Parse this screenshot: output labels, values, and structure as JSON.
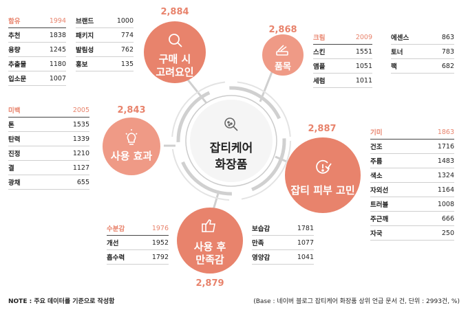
{
  "center": {
    "title": "잡티케어\n화장품"
  },
  "bubbles": {
    "purchase": {
      "label": "구매 시\n고려요인",
      "count": "2,884",
      "icon": "search-icon"
    },
    "item": {
      "label": "품목",
      "count": "2,868",
      "icon": "cosmetics-icon"
    },
    "concern": {
      "label": "잡티 피부 고민",
      "count": "2,887",
      "icon": "alert-check-icon"
    },
    "effect": {
      "label": "사용 효과",
      "count": "2,843",
      "icon": "lightbulb-icon"
    },
    "satisfaction": {
      "label": "사용 후\n만족감",
      "count": "2,879",
      "icon": "thumbs-up-icon"
    }
  },
  "tables": {
    "purchase_left": [
      {
        "k": "함유",
        "v": "1994"
      },
      {
        "k": "추천",
        "v": "1838"
      },
      {
        "k": "용량",
        "v": "1245"
      },
      {
        "k": "추출물",
        "v": "1180"
      },
      {
        "k": "입소문",
        "v": "1007"
      }
    ],
    "purchase_right": [
      {
        "k": "브랜드",
        "v": "1000"
      },
      {
        "k": "패키지",
        "v": "774"
      },
      {
        "k": "발림성",
        "v": "762"
      },
      {
        "k": "홍보",
        "v": "135"
      }
    ],
    "item_left": [
      {
        "k": "크림",
        "v": "2009"
      },
      {
        "k": "스킨",
        "v": "1551"
      },
      {
        "k": "앰플",
        "v": "1051"
      },
      {
        "k": "세럼",
        "v": "1011"
      }
    ],
    "item_right": [
      {
        "k": "에센스",
        "v": "863"
      },
      {
        "k": "토너",
        "v": "783"
      },
      {
        "k": "팩",
        "v": "682"
      }
    ],
    "effect": [
      {
        "k": "미백",
        "v": "2005"
      },
      {
        "k": "톤",
        "v": "1535"
      },
      {
        "k": "탄력",
        "v": "1339"
      },
      {
        "k": "진정",
        "v": "1210"
      },
      {
        "k": "결",
        "v": "1127"
      },
      {
        "k": "광채",
        "v": "655"
      }
    ],
    "concern": [
      {
        "k": "기미",
        "v": "1863"
      },
      {
        "k": "건조",
        "v": "1716"
      },
      {
        "k": "주름",
        "v": "1483"
      },
      {
        "k": "색소",
        "v": "1324"
      },
      {
        "k": "자외선",
        "v": "1164"
      },
      {
        "k": "트러블",
        "v": "1008"
      },
      {
        "k": "주근깨",
        "v": "666"
      },
      {
        "k": "자국",
        "v": "250"
      }
    ],
    "satisfaction_left": [
      {
        "k": "수분감",
        "v": "1976"
      },
      {
        "k": "개선",
        "v": "1952"
      },
      {
        "k": "흡수력",
        "v": "1792"
      }
    ],
    "satisfaction_right": [
      {
        "k": "보습감",
        "v": "1781"
      },
      {
        "k": "만족",
        "v": "1077"
      },
      {
        "k": "영양감",
        "v": "1041"
      }
    ]
  },
  "footer": {
    "note": "NOTE : 주요 데이터를 기준으로 작성함",
    "base": "(Base : 네이버 블로그 잡티케어 화장품 상위 언급 문서 건, 단위 : 2993건, %)"
  },
  "colors": {
    "accent": "#e8836c",
    "bubble_light": "#ef9a86",
    "ring": "#d9d9d9"
  }
}
